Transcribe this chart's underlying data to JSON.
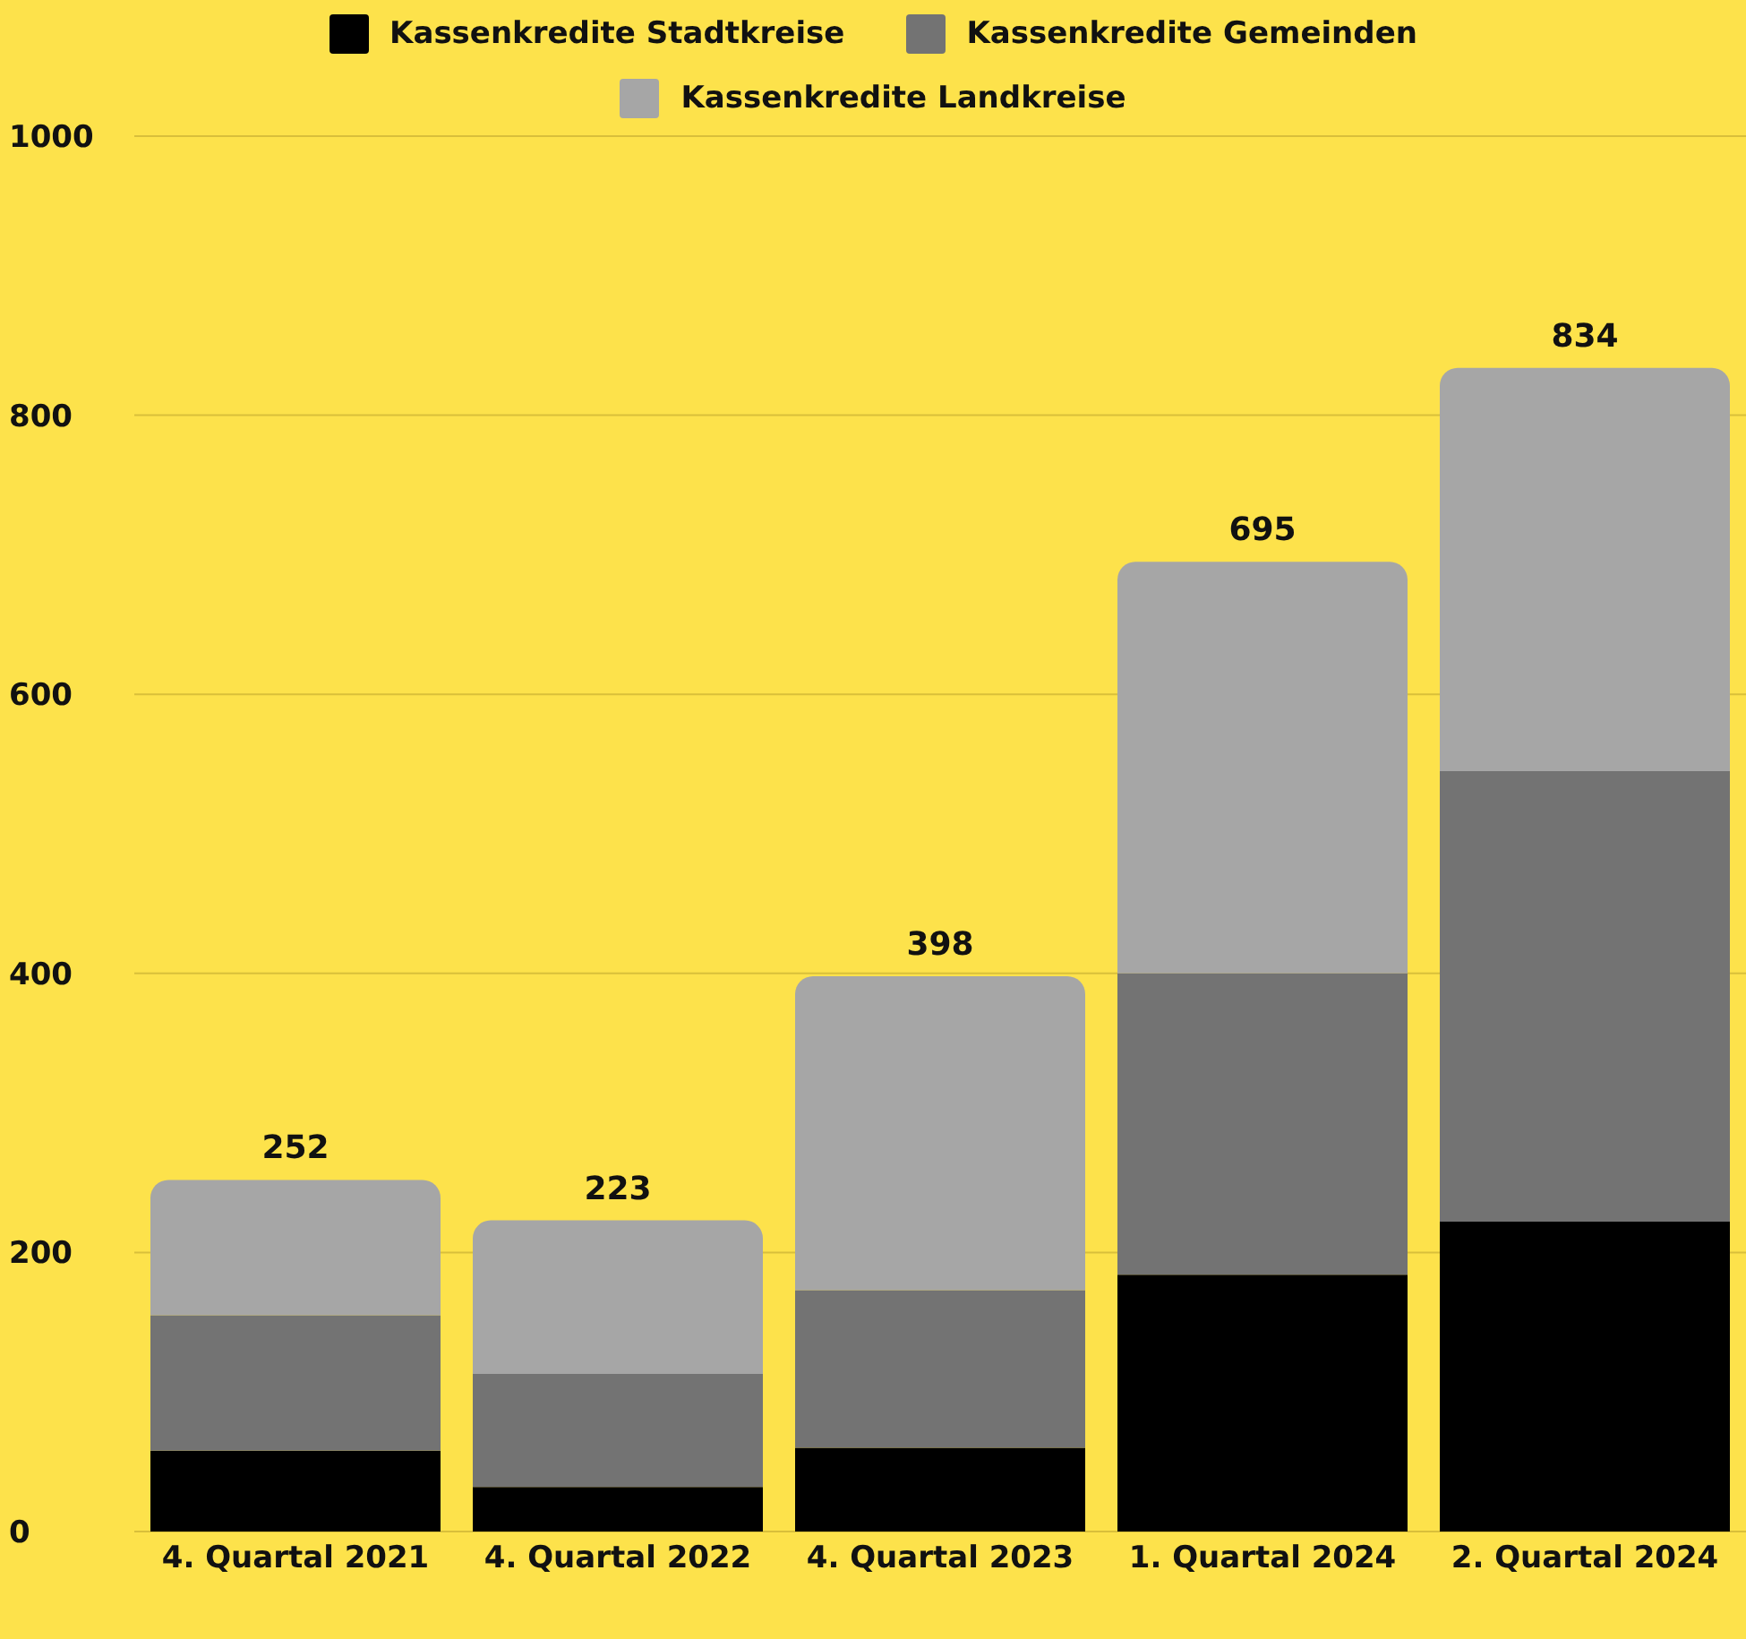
{
  "chart_data": {
    "type": "bar",
    "stacked": true,
    "categories": [
      "4. Quartal 2021",
      "4. Quartal 2022",
      "4. Quartal 2023",
      "1. Quartal 2024",
      "2. Quartal 2024"
    ],
    "series": [
      {
        "name": "Kassenkredite Stadtkreise",
        "color": "#000000",
        "values": [
          58,
          32,
          60,
          184,
          222
        ]
      },
      {
        "name": "Kassenkredite Gemeinden",
        "color": "#737373",
        "values": [
          97,
          81,
          113,
          216,
          323
        ]
      },
      {
        "name": "Kassenkredite Landkreise",
        "color": "#a6a6a6",
        "values": [
          97,
          110,
          225,
          295,
          289
        ]
      }
    ],
    "totals": [
      "252",
      "223",
      "398",
      "695",
      "834"
    ],
    "ylim": [
      0,
      1000
    ],
    "yticks": [
      0,
      200,
      400,
      600,
      800,
      1000
    ],
    "grid": "y",
    "legend": "top"
  }
}
